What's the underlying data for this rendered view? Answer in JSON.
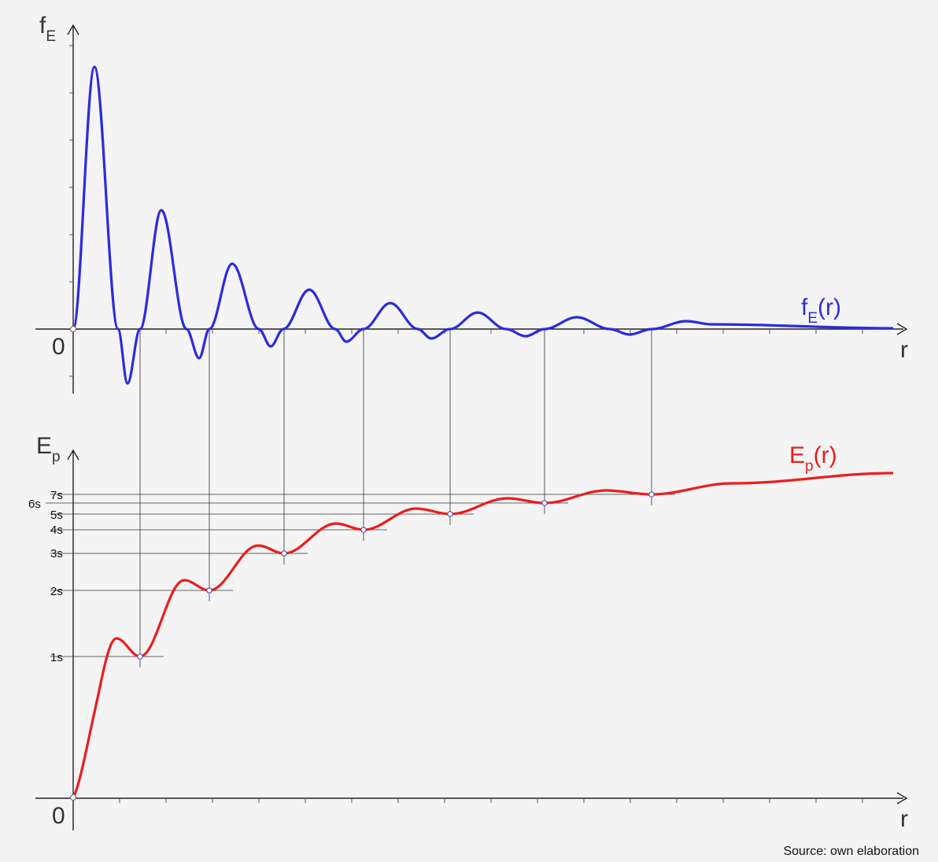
{
  "chart_data": [
    {
      "type": "line",
      "title": "",
      "y_axis_label": {
        "main": "f",
        "sub": "E"
      },
      "x_axis_label": "r",
      "origin_label": "0",
      "series": [
        {
          "name": {
            "main": "f",
            "sub": "E",
            "rest": "(r)"
          },
          "color": "#2b2be0"
        }
      ],
      "grid": false,
      "legend": "inline-right"
    },
    {
      "type": "line",
      "title": "",
      "y_axis_label": {
        "main": "E",
        "sub": "p"
      },
      "x_axis_label": "r",
      "origin_label": "0",
      "series": [
        {
          "name": {
            "main": "E",
            "sub": "p",
            "rest": "(r)"
          },
          "color": "#ee1c1c"
        }
      ],
      "levels": [
        "1s",
        "2s",
        "3s",
        "4s",
        "5s",
        "6s",
        "7s"
      ],
      "grid": false,
      "legend": "inline-right"
    }
  ],
  "source_note": "Source: own elaboration"
}
